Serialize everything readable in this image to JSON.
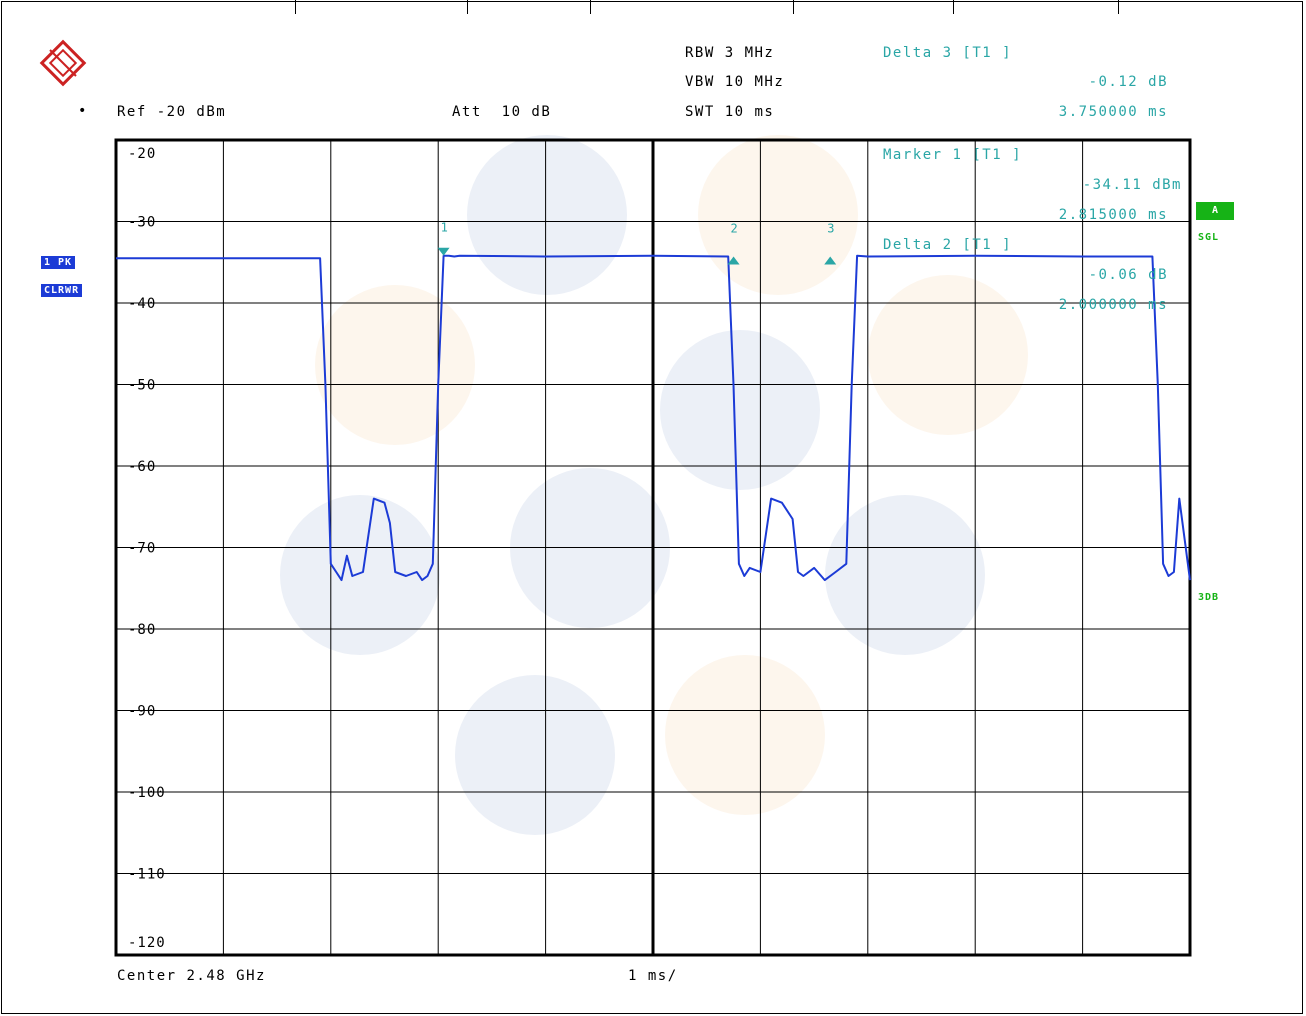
{
  "header": {
    "ref": "Ref -20 dBm",
    "att": "Att  10 dB",
    "rbw": "RBW 3 MHz",
    "vbw": "VBW 10 MHz",
    "swt": "SWT 10 ms",
    "delta3_title": "Delta 3 [T1 ]",
    "delta3_level": "-0.12 dB",
    "delta3_time": "3.750000 ms"
  },
  "overlay": {
    "marker1_title": "Marker 1 [T1 ]",
    "marker1_level": "-34.11 dBm",
    "marker1_time": "2.815000 ms",
    "delta2_title": "Delta 2 [T1 ]",
    "delta2_level": "-0.06 dB",
    "delta2_time": "2.000000 ms"
  },
  "side": {
    "trace_label": "1 PK",
    "trace_mode": "CLRWR",
    "status_box": "A",
    "status_sgl": "SGL",
    "status_3db": "3DB"
  },
  "footer": {
    "center": "Center 2.48 GHz",
    "span": "1 ms/"
  },
  "colors": {
    "trace": "#1c3bd6",
    "marker": "#2aa6a6",
    "grid": "#000000"
  },
  "chart_data": {
    "type": "line",
    "xlabel": "",
    "ylabel": "",
    "xlim": [
      0,
      10
    ],
    "ylim": [
      -120,
      -20
    ],
    "y_ticks": [
      -20,
      -30,
      -40,
      -50,
      -60,
      -70,
      -80,
      -90,
      -100,
      -110,
      -120
    ],
    "y_tick_labels": [
      "-20",
      "-30",
      "-40",
      "-50",
      "-60",
      "-70",
      "-80",
      "-90",
      "-100",
      "-110",
      "-120"
    ],
    "grid": true,
    "series": [
      {
        "name": "",
        "x": [
          0,
          1.9,
          1.95,
          2.0,
          2.05,
          2.1,
          2.15,
          2.2,
          2.3,
          2.4,
          2.5,
          2.55,
          2.6,
          2.7,
          2.8,
          2.85,
          2.9,
          2.95,
          3.0,
          3.05,
          3.1,
          3.15,
          3.2,
          4.0,
          5.0,
          5.7,
          5.75,
          5.8,
          5.85,
          5.9,
          6.0,
          6.1,
          6.2,
          6.3,
          6.35,
          6.4,
          6.5,
          6.6,
          6.7,
          6.8,
          6.85,
          6.9,
          7.0,
          8.0,
          9.0,
          9.65,
          9.7,
          9.75,
          9.8,
          9.85,
          9.9,
          10.0
        ],
        "y": [
          -34.5,
          -34.5,
          -50,
          -72,
          -73,
          -74,
          -71,
          -73.5,
          -73,
          -64,
          -64.5,
          -67,
          -73,
          -73.5,
          -73,
          -74,
          -73.5,
          -72,
          -50,
          -34.2,
          -34.2,
          -34.3,
          -34.2,
          -34.3,
          -34.2,
          -34.3,
          -50,
          -72,
          -73.5,
          -72.5,
          -73,
          -64,
          -64.5,
          -66.5,
          -73,
          -73.5,
          -72.5,
          -74,
          -73,
          -72,
          -50,
          -34.2,
          -34.3,
          -34.2,
          -34.3,
          -34.3,
          -50,
          -72,
          -73.5,
          -73,
          -64,
          -74
        ]
      }
    ],
    "markers": [
      {
        "label": "1",
        "x": 3.05,
        "y": -34.2,
        "direction": "down"
      },
      {
        "label": "2",
        "x": 5.75,
        "y": -34.3,
        "direction": "up"
      },
      {
        "label": "3",
        "x": 6.65,
        "y": -34.3,
        "direction": "up"
      }
    ]
  }
}
